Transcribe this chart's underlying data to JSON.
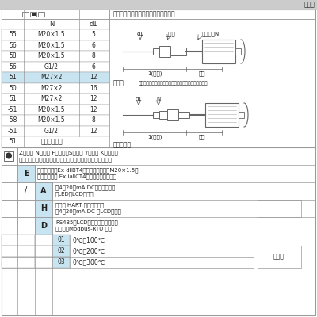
{
  "title_right": "温度变",
  "header_text": "过程连接、显示型接线盒、保护管代号",
  "col_N": "N",
  "col_d1": "d1",
  "table_rows": [
    [
      "55",
      "M20×1.5",
      "5"
    ],
    [
      "56",
      "M20×1.5",
      "6"
    ],
    [
      "58",
      "M20×1.5",
      "8"
    ],
    [
      "56",
      "G1/2",
      "6"
    ],
    [
      "51",
      "M27×2",
      "12"
    ],
    [
      "50",
      "M27×2",
      "16"
    ],
    [
      "51",
      "M27×2",
      "12"
    ],
    [
      "-51",
      "M20×1.5",
      "12"
    ],
    [
      "-58",
      "M20×1.5",
      "8"
    ],
    [
      "-51",
      "G1/2",
      "12"
    ]
  ],
  "label_basic": "基本型",
  "label_basic_desc": "基本型一般配合各种温度保护管使用或有内半圆图扫的螺",
  "label_screw": "螺纹护套型",
  "label_custom": "非标准自定义",
  "diag1_d1": "d1",
  "diag1_flange": "小法兰",
  "diag1_screw": "活套螺纹N",
  "diag1_insert": "1(插深)",
  "diag1_cold": "冷端",
  "diag2_d1": "d1",
  "diag2_N": "N",
  "diag2_insert": "1(插深)",
  "diag2_cold": "冷端",
  "bottom_z_line1": "Z：防震 N：耗厏 F：防腐，S：安径 Y：耗厏 K：妈装，",
  "bottom_z_line2": "附加功能代号　　（无要求可省略，可以连注多项附加功能）",
  "E_code": "E",
  "E_text1": "隔爆接线盒（Ex dⅡBT4）　（电气接口⎕M20×1.5）",
  "E_text2": "（模块本安型 Ex iaⅡCT4）　（无要求省略）",
  "slash_code": "/",
  "A_code": "A",
  "A_text1": "（4～20）mA DC　　（二线）",
  "A_text2": "（LED或LCD显示）",
  "H_code": "H",
  "H_text1": "智能型 HART 通讯（二线）",
  "H_text2": "（4～20）mA DC （LCD显示）",
  "D_code": "D",
  "D_text1": "RS485（LCD显示）　智能网络型",
  "D_text2": "通讯协议Modbus-RTU 格式",
  "range_01": "0℃～100℃",
  "range_02": "0℃～200℃",
  "range_03": "0℃～300℃",
  "another_def": "另定义",
  "blue_cell": "#c8e4f0",
  "light_blue": "#dff0f8",
  "border_col": "#999999",
  "text_col": "#222222",
  "gray_top": "#cccccc"
}
